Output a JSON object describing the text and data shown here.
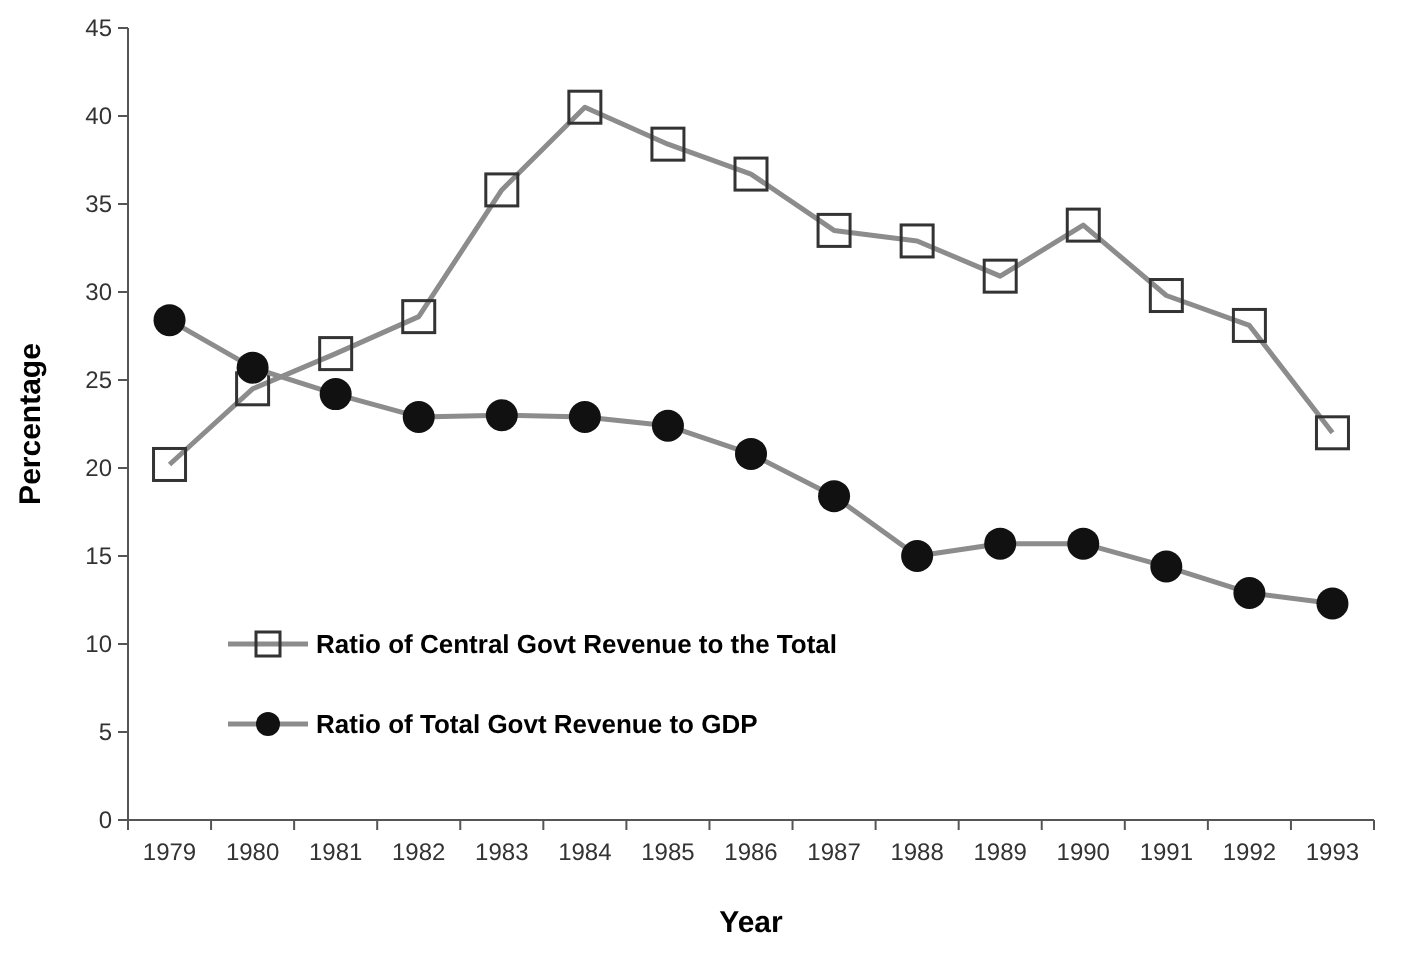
{
  "chart_data": {
    "type": "line",
    "xlabel": "Year",
    "ylabel": "Percentage",
    "categories": [
      "1979",
      "1980",
      "1981",
      "1982",
      "1983",
      "1984",
      "1985",
      "1986",
      "1987",
      "1988",
      "1989",
      "1990",
      "1991",
      "1992",
      "1993"
    ],
    "series": [
      {
        "name": "Ratio of Central Govt Revenue to the Total",
        "color": "#8c8c8c",
        "marker": "square",
        "values": [
          20.2,
          24.5,
          26.5,
          28.6,
          35.8,
          40.5,
          38.4,
          36.7,
          33.5,
          32.9,
          30.9,
          33.8,
          29.8,
          28.1,
          22.0
        ]
      },
      {
        "name": "Ratio of Total Govt Revenue to GDP",
        "color": "#8c8c8c",
        "marker": "circle",
        "values": [
          28.4,
          25.7,
          24.2,
          22.9,
          23.0,
          22.9,
          22.4,
          20.8,
          18.4,
          15.0,
          15.7,
          15.7,
          14.4,
          12.9,
          12.3
        ]
      }
    ],
    "ylim": [
      0,
      45
    ],
    "yticks": [
      0,
      5,
      10,
      15,
      20,
      25,
      30,
      35,
      40,
      45
    ],
    "grid": false,
    "legend": "left",
    "line_style": "solid"
  }
}
